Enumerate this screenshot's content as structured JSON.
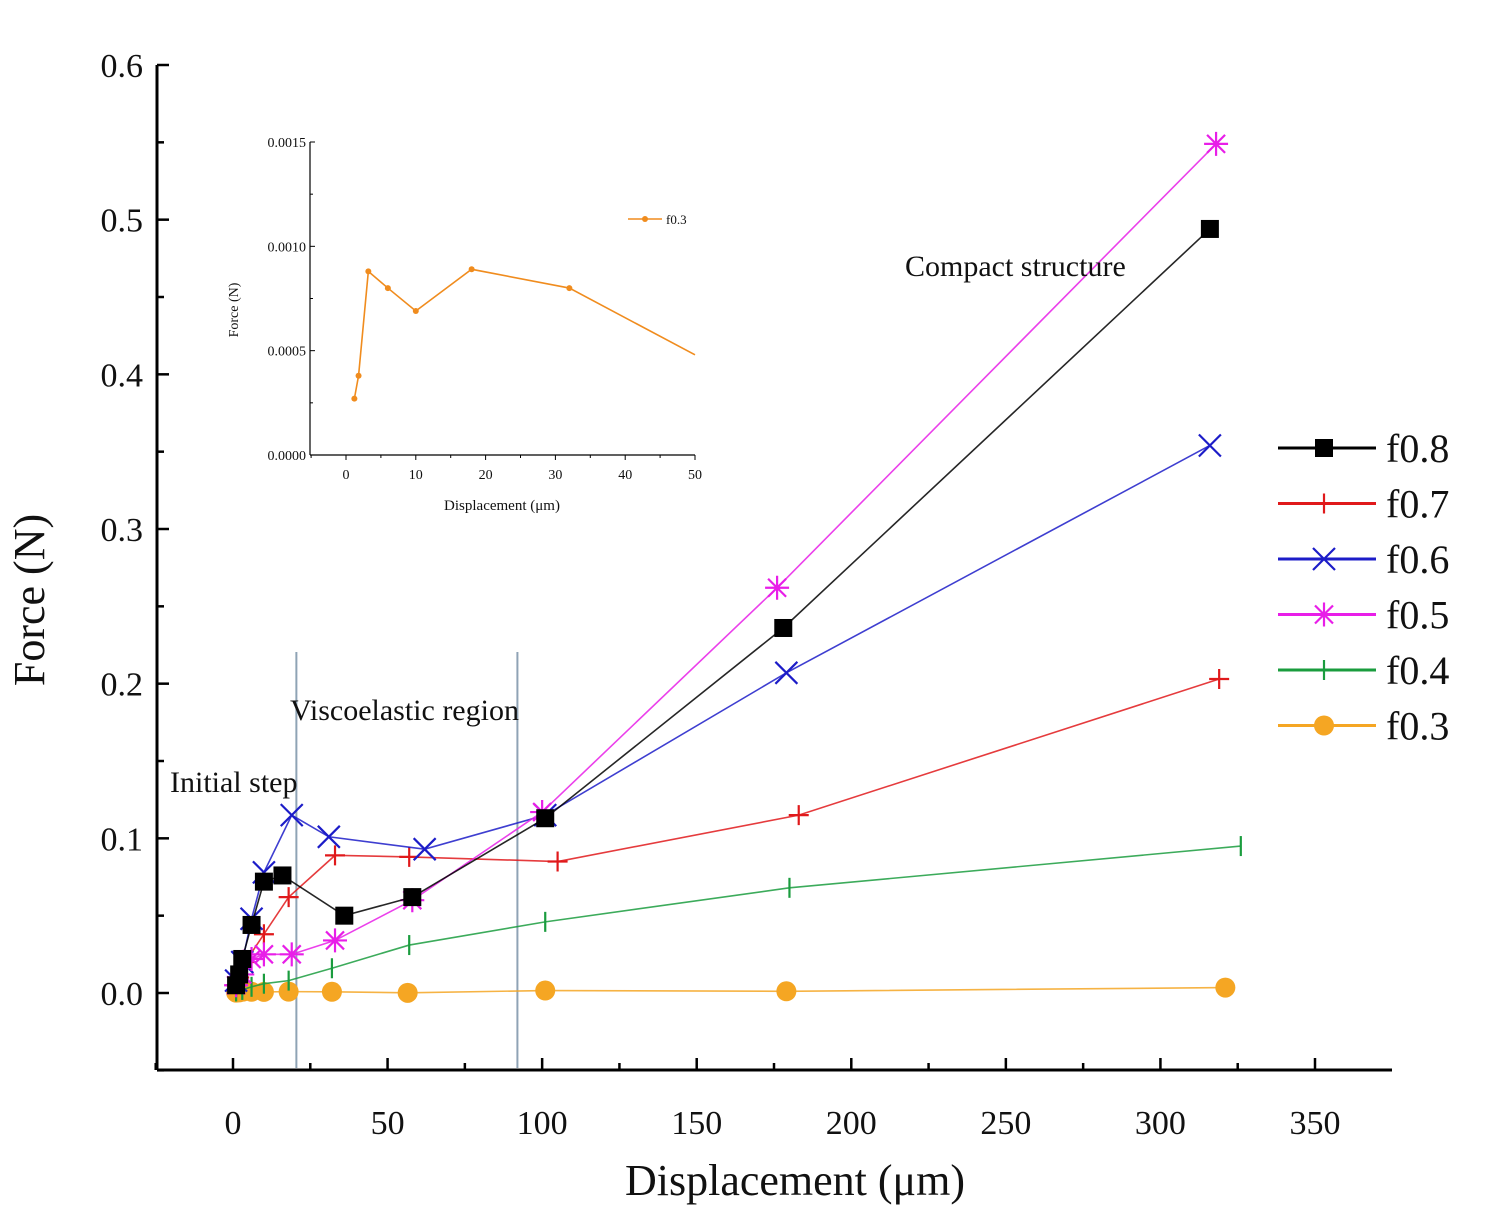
{
  "chart_data": {
    "type": "line",
    "title": "",
    "xlabel": "Displacement (μm)",
    "ylabel": "Force (N)",
    "xlim": [
      -25,
      375
    ],
    "ylim": [
      -0.05,
      0.6
    ],
    "x_ticks": [
      0,
      50,
      100,
      150,
      200,
      250,
      300,
      350
    ],
    "y_ticks": [
      0.0,
      0.1,
      0.2,
      0.3,
      0.4,
      0.5,
      0.6
    ],
    "x_tick_labels": [
      "0",
      "50",
      "100",
      "150",
      "200",
      "250",
      "300",
      "350"
    ],
    "y_tick_labels": [
      "0.0",
      "0.1",
      "0.2",
      "0.3",
      "0.4",
      "0.5",
      "0.6"
    ],
    "region_lines_x": [
      20.5,
      92
    ],
    "annotations": [
      "Initial step",
      "Viscoelastic region",
      "Compact structure"
    ],
    "legend_position": "right",
    "series": [
      {
        "name": "f0.8",
        "color": "#000000",
        "marker": "square",
        "x": [
          1,
          2,
          3,
          6,
          10,
          16,
          36,
          58,
          101,
          178,
          316
        ],
        "y": [
          0.005,
          0.012,
          0.022,
          0.044,
          0.072,
          0.076,
          0.05,
          0.062,
          0.113,
          0.236,
          0.494
        ]
      },
      {
        "name": "f0.7",
        "color": "#e0191b",
        "marker": "plus",
        "x": [
          1,
          2,
          4,
          10,
          18,
          33,
          57,
          105,
          183,
          319
        ],
        "y": [
          0.005,
          0.01,
          0.02,
          0.038,
          0.062,
          0.089,
          0.088,
          0.085,
          0.115,
          0.203
        ]
      },
      {
        "name": "f0.6",
        "color": "#1c1cc8",
        "marker": "x",
        "x": [
          1,
          3,
          6,
          10,
          19,
          31,
          62,
          101,
          179,
          316
        ],
        "y": [
          0.008,
          0.02,
          0.048,
          0.078,
          0.115,
          0.101,
          0.093,
          0.115,
          0.207,
          0.354
        ]
      },
      {
        "name": "f0.5",
        "color": "#e81ee8",
        "marker": "asterisk",
        "x": [
          1,
          3,
          6,
          10,
          19,
          33,
          58,
          100,
          176,
          318
        ],
        "y": [
          0.005,
          0.012,
          0.022,
          0.025,
          0.025,
          0.034,
          0.06,
          0.117,
          0.262,
          0.549
        ]
      },
      {
        "name": "f0.4",
        "color": "#1a9c3e",
        "marker": "vline",
        "x": [
          1,
          3,
          6,
          10,
          18,
          32,
          57,
          101,
          180,
          326
        ],
        "y": [
          0.001,
          0.002,
          0.004,
          0.006,
          0.008,
          0.016,
          0.031,
          0.046,
          0.068,
          0.095
        ]
      },
      {
        "name": "f0.3",
        "color": "#f5a623",
        "marker": "circle",
        "x": [
          1,
          2,
          3.2,
          6,
          10,
          18,
          32,
          56.5,
          101,
          179,
          321
        ],
        "y": [
          0.00025,
          0.00038,
          0.00088,
          0.00079,
          0.00069,
          0.00089,
          0.0008,
          0.0001,
          0.0016,
          0.0011,
          0.0035
        ]
      }
    ]
  },
  "inset": {
    "xlabel": "Displacement (μm)",
    "ylabel": "Force (N)",
    "xlim": [
      -5,
      50
    ],
    "ylim": [
      0,
      0.0015
    ],
    "x_ticks": [
      0,
      10,
      20,
      30,
      40,
      50
    ],
    "y_ticks": [
      0.0,
      0.0005,
      0.001,
      0.0015
    ],
    "x_tick_labels": [
      "0",
      "10",
      "20",
      "30",
      "40",
      "50"
    ],
    "y_tick_labels": [
      "0.0000",
      "0.0005",
      "0.0010",
      "0.0015"
    ],
    "series": [
      {
        "name": "f0.3",
        "color": "#f08c1e",
        "x": [
          1.2,
          1.8,
          3.2,
          6,
          10,
          18,
          32,
          50
        ],
        "y": [
          0.00027,
          0.00038,
          0.00088,
          0.0008,
          0.00069,
          0.00089,
          0.0008,
          0.00048
        ]
      }
    ]
  }
}
